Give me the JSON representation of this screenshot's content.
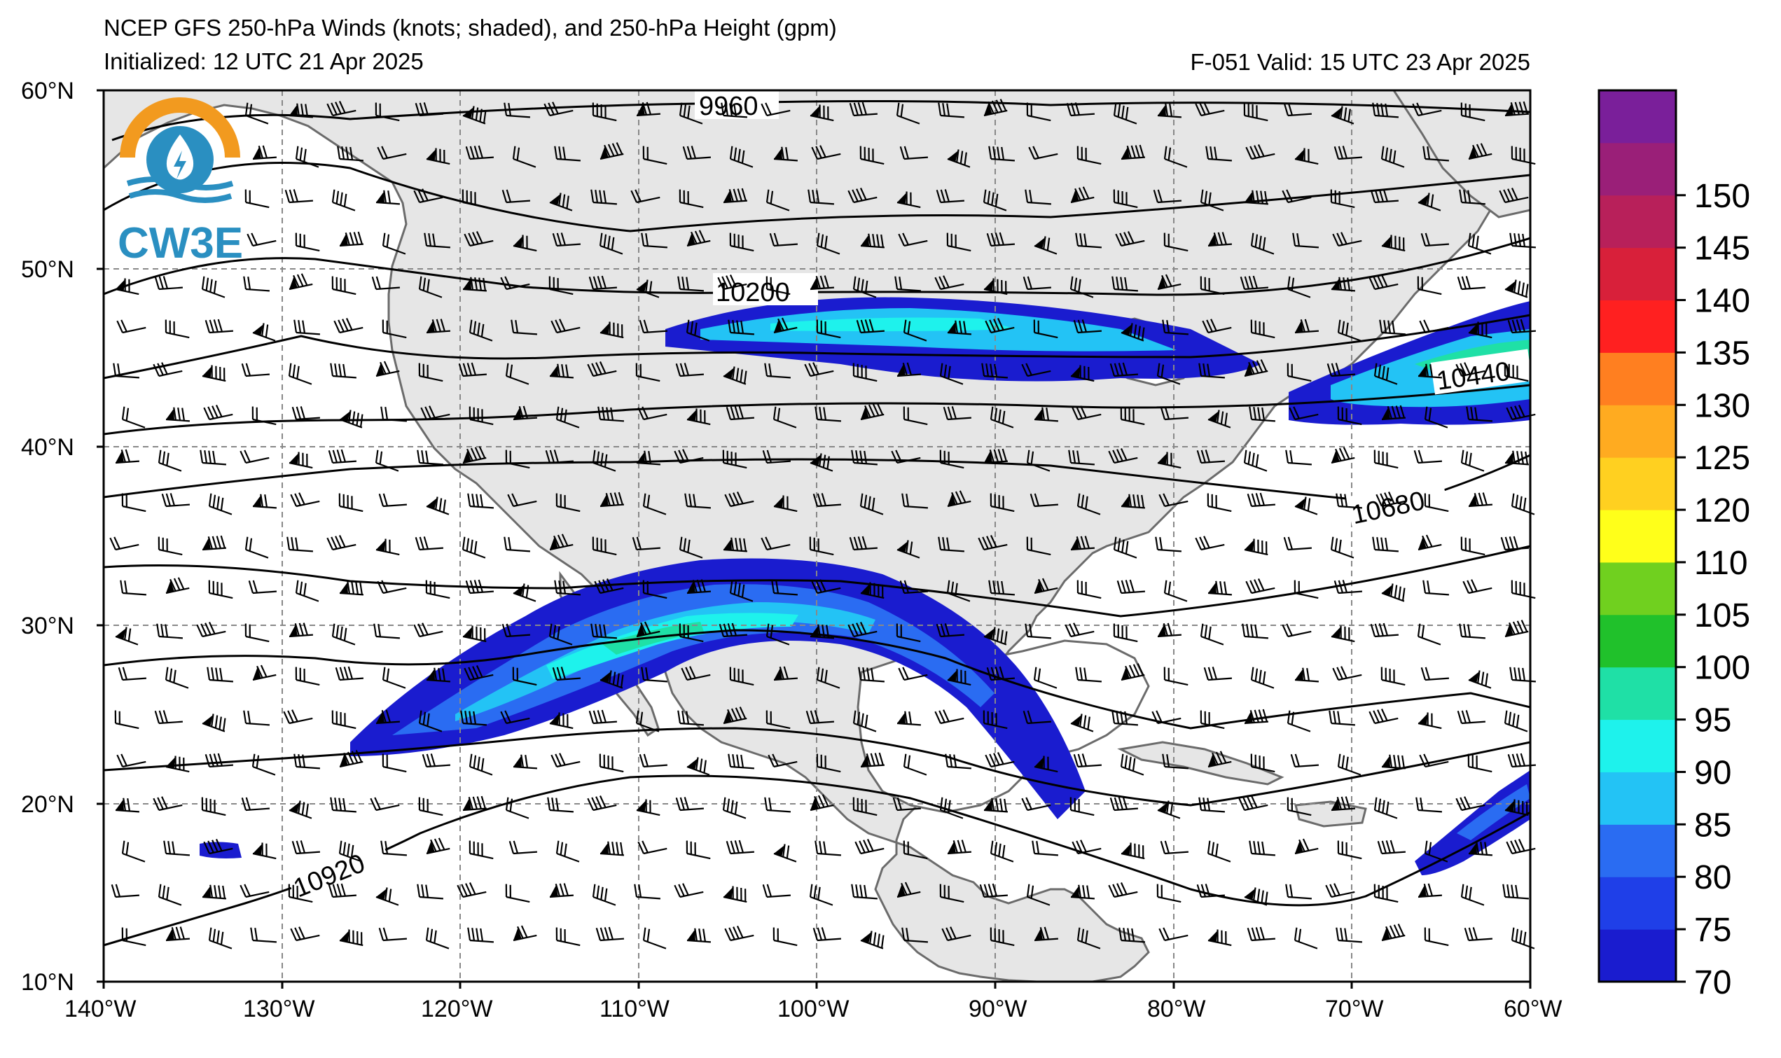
{
  "title": {
    "line1": "NCEP GFS 250-hPa Winds (knots; shaded), and 250-hPa Height (gpm)",
    "initialized": "Initialized: 12 UTC 21 Apr 2025",
    "valid": "F-051  Valid: 15 UTC 23 Apr 2025"
  },
  "logo": {
    "text": "CW3E",
    "icon": "water-drop-lightning-icon"
  },
  "map": {
    "lat_labels": [
      "60°N",
      "50°N",
      "40°N",
      "30°N",
      "20°N",
      "10°N"
    ],
    "lon_labels": [
      "140°W",
      "130°W",
      "120°W",
      "110°W",
      "100°W",
      "90°W",
      "80°W",
      "70°W",
      "60°W"
    ],
    "lat_values": [
      60,
      50,
      40,
      30,
      20,
      10
    ],
    "lon_values": [
      -140,
      -130,
      -120,
      -110,
      -100,
      -90,
      -80,
      -70,
      -60
    ],
    "extent": {
      "lon": [
        -140,
        -60
      ],
      "lat": [
        10,
        60
      ]
    },
    "height_contour_labels": [
      "9960",
      "10200",
      "10440",
      "10680",
      "10920"
    ],
    "land_color": "#e6e6e6",
    "ocean_color": "#ffffff",
    "gridline_color": "#888888"
  },
  "colorbar": {
    "ticks": [
      "70",
      "75",
      "80",
      "85",
      "90",
      "95",
      "100",
      "105",
      "110",
      "120",
      "125",
      "130",
      "135",
      "140",
      "145",
      "150"
    ],
    "colors": [
      "#1a1ccf",
      "#1f3fe8",
      "#2a6cf2",
      "#23c3f5",
      "#1ef2ec",
      "#1fe0a6",
      "#20c12b",
      "#70d01f",
      "#ffff1a",
      "#ffd020",
      "#ffab20",
      "#ff7f20",
      "#ff2020",
      "#d8203a",
      "#b8205a",
      "#9a1f78",
      "#7a1f9a"
    ]
  }
}
